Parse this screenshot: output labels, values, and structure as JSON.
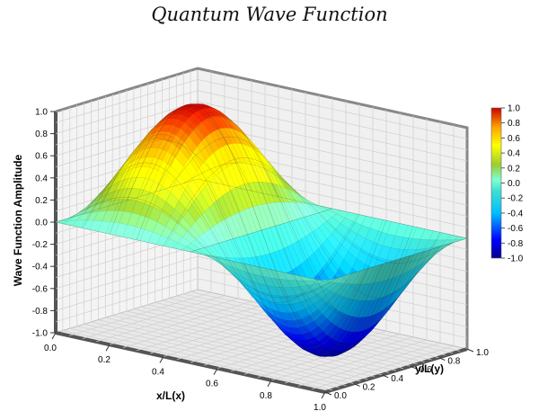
{
  "chart_data": {
    "type": "surface3d",
    "title": "Quantum Wave Function",
    "xlabel": "x/L(x)",
    "ylabel": "y/L(y)",
    "zlabel": "Wave Function Amplitude",
    "function": "sin(2πx)·sin(πy)",
    "xlim": [
      0,
      1
    ],
    "ylim": [
      0,
      1
    ],
    "zlim": [
      -1,
      1
    ],
    "x_ticks": [
      "0.0",
      "0.2",
      "0.4",
      "0.6",
      "0.8",
      "1.0"
    ],
    "y_ticks": [
      "0.0",
      "0.2",
      "0.4",
      "0.6",
      "0.8",
      "1.0"
    ],
    "z_ticks": [
      "-1.0",
      "-0.8",
      "-0.6",
      "-0.4",
      "-0.2",
      "0.0",
      "0.2",
      "0.4",
      "0.6",
      "0.8",
      "1.0"
    ],
    "colorbar_ticks": [
      "-1.0",
      "-0.8",
      "-0.6",
      "-0.4",
      "-0.2",
      "0.0",
      "0.2",
      "0.4",
      "0.6",
      "0.8",
      "1.0"
    ],
    "colormap": [
      "#00008b",
      "#0000ff",
      "#00bfff",
      "#40e0d0",
      "#7fffd4",
      "#9acd32",
      "#ffff00",
      "#ffa500",
      "#ff4500",
      "#cc0000"
    ],
    "grid": true,
    "legend_position": "right"
  }
}
